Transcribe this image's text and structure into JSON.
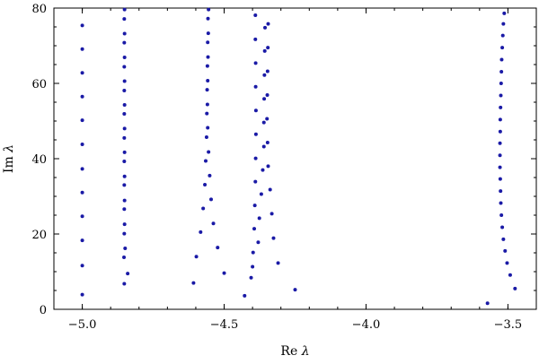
{
  "chart_data": {
    "type": "scatter",
    "xlabel": {
      "pre": "Re ",
      "sym": "λ"
    },
    "ylabel": {
      "pre": "Im ",
      "sym": "λ"
    },
    "xlim": [
      -5.1,
      -3.4
    ],
    "ylim": [
      0,
      80
    ],
    "xticks": [
      {
        "v": -5.0,
        "label": "−5.0"
      },
      {
        "v": -4.5,
        "label": "−4.5"
      },
      {
        "v": -4.0,
        "label": "−4.0"
      },
      {
        "v": -3.5,
        "label": "−3.5"
      }
    ],
    "yticks": [
      {
        "v": 0,
        "label": "0"
      },
      {
        "v": 20,
        "label": "20"
      },
      {
        "v": 40,
        "label": "40"
      },
      {
        "v": 60,
        "label": "60"
      },
      {
        "v": 80,
        "label": "80"
      }
    ],
    "marker_color": "#1a1aa6",
    "grid": false,
    "series": [
      {
        "points": [
          [
            -5.0,
            3.9
          ],
          [
            -5.0,
            11.6
          ],
          [
            -5.0,
            18.3
          ],
          [
            -5.0,
            24.7
          ],
          [
            -5.0,
            31.0
          ],
          [
            -5.0,
            37.3
          ],
          [
            -5.0,
            43.8
          ],
          [
            -5.0,
            50.2
          ],
          [
            -5.0,
            56.5
          ],
          [
            -5.0,
            62.8
          ],
          [
            -5.0,
            69.1
          ],
          [
            -5.0,
            75.4
          ],
          [
            -4.852,
            6.8
          ],
          [
            -4.84,
            9.5
          ],
          [
            -4.853,
            13.8
          ],
          [
            -4.849,
            16.2
          ],
          [
            -4.852,
            20.1
          ],
          [
            -4.851,
            22.6
          ],
          [
            -4.852,
            26.6
          ],
          [
            -4.851,
            28.9
          ],
          [
            -4.852,
            33.0
          ],
          [
            -4.851,
            35.3
          ],
          [
            -4.852,
            39.3
          ],
          [
            -4.851,
            41.7
          ],
          [
            -4.852,
            45.5
          ],
          [
            -4.851,
            48.0
          ],
          [
            -4.852,
            51.9
          ],
          [
            -4.851,
            54.3
          ],
          [
            -4.852,
            58.1
          ],
          [
            -4.851,
            60.6
          ],
          [
            -4.852,
            64.4
          ],
          [
            -4.851,
            66.9
          ],
          [
            -4.852,
            70.8
          ],
          [
            -4.851,
            73.2
          ],
          [
            -4.852,
            77.1
          ],
          [
            -4.851,
            79.6
          ],
          [
            -4.608,
            7.0
          ],
          [
            -4.5,
            9.6
          ],
          [
            -4.598,
            14.0
          ],
          [
            -4.523,
            16.4
          ],
          [
            -4.583,
            20.5
          ],
          [
            -4.538,
            22.8
          ],
          [
            -4.574,
            26.8
          ],
          [
            -4.546,
            29.2
          ],
          [
            -4.568,
            33.1
          ],
          [
            -4.551,
            35.5
          ],
          [
            -4.565,
            39.4
          ],
          [
            -4.555,
            41.8
          ],
          [
            -4.562,
            45.7
          ],
          [
            -4.558,
            48.2
          ],
          [
            -4.561,
            52.0
          ],
          [
            -4.559,
            54.4
          ],
          [
            -4.56,
            58.3
          ],
          [
            -4.558,
            60.7
          ],
          [
            -4.559,
            64.6
          ],
          [
            -4.557,
            67.0
          ],
          [
            -4.558,
            70.9
          ],
          [
            -4.556,
            73.3
          ],
          [
            -4.557,
            77.2
          ],
          [
            -4.555,
            79.6
          ],
          [
            -4.428,
            3.6
          ],
          [
            -4.25,
            5.2
          ],
          [
            -4.405,
            8.4
          ],
          [
            -4.31,
            12.3
          ],
          [
            -4.4,
            11.3
          ],
          [
            -4.326,
            18.9
          ],
          [
            -4.398,
            15.1
          ],
          [
            -4.38,
            17.8
          ],
          [
            -4.394,
            21.4
          ],
          [
            -4.332,
            25.4
          ],
          [
            -4.376,
            24.2
          ],
          [
            -4.392,
            27.6
          ],
          [
            -4.338,
            31.8
          ],
          [
            -4.369,
            30.6
          ],
          [
            -4.39,
            33.9
          ],
          [
            -4.345,
            38.0
          ],
          [
            -4.364,
            37.0
          ],
          [
            -4.389,
            40.1
          ],
          [
            -4.347,
            44.3
          ],
          [
            -4.36,
            43.2
          ],
          [
            -4.388,
            46.5
          ],
          [
            -4.349,
            50.6
          ],
          [
            -4.36,
            49.6
          ],
          [
            -4.388,
            52.8
          ],
          [
            -4.348,
            56.9
          ],
          [
            -4.359,
            55.9
          ],
          [
            -4.389,
            59.1
          ],
          [
            -4.347,
            63.2
          ],
          [
            -4.358,
            62.2
          ],
          [
            -4.389,
            65.4
          ],
          [
            -4.346,
            69.5
          ],
          [
            -4.357,
            68.6
          ],
          [
            -4.39,
            71.7
          ],
          [
            -4.345,
            75.8
          ],
          [
            -4.356,
            74.8
          ],
          [
            -4.39,
            78.1
          ],
          [
            -3.572,
            1.6
          ],
          [
            -3.475,
            5.5
          ],
          [
            -3.492,
            9.1
          ],
          [
            -3.503,
            12.3
          ],
          [
            -3.51,
            15.5
          ],
          [
            -3.516,
            18.6
          ],
          [
            -3.52,
            21.8
          ],
          [
            -3.523,
            25.0
          ],
          [
            -3.525,
            28.2
          ],
          [
            -3.526,
            31.4
          ],
          [
            -3.527,
            34.6
          ],
          [
            -3.528,
            37.7
          ],
          [
            -3.528,
            40.9
          ],
          [
            -3.528,
            44.1
          ],
          [
            -3.527,
            47.2
          ],
          [
            -3.527,
            50.4
          ],
          [
            -3.526,
            53.6
          ],
          [
            -3.525,
            56.8
          ],
          [
            -3.524,
            60.0
          ],
          [
            -3.523,
            63.1
          ],
          [
            -3.522,
            66.3
          ],
          [
            -3.52,
            69.5
          ],
          [
            -3.518,
            72.7
          ],
          [
            -3.516,
            75.8
          ],
          [
            -3.513,
            78.6
          ]
        ]
      }
    ]
  }
}
